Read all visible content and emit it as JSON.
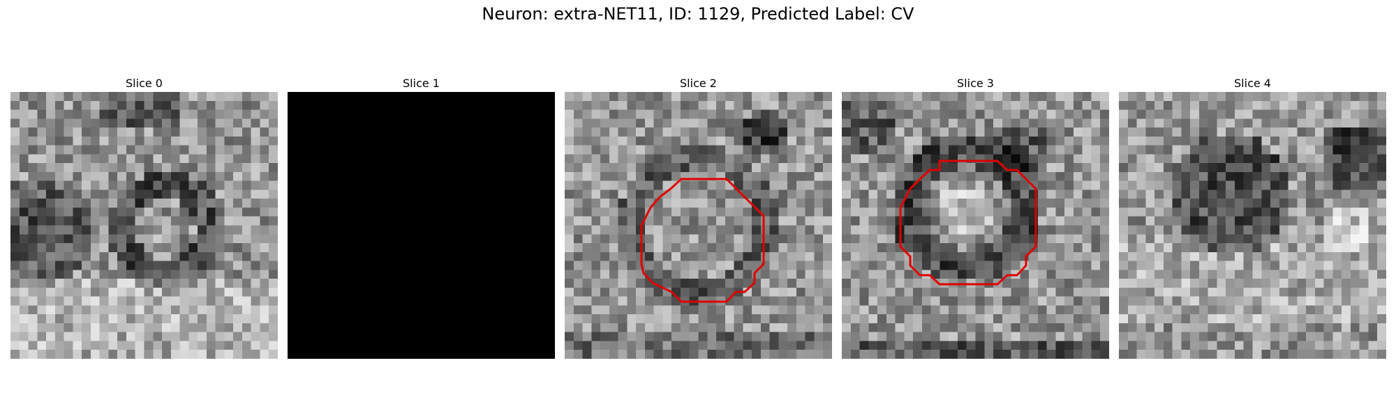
{
  "title": "Neuron: extra-NET11, ID: 1129, Predicted Label: CV",
  "panels": [
    {
      "label": "Slice 0",
      "seed": 11,
      "style": "rings",
      "contour": false
    },
    {
      "label": "Slice 1",
      "seed": 0,
      "style": "blank",
      "contour": false
    },
    {
      "label": "Slice 2",
      "seed": 23,
      "style": "noisy",
      "contour": true
    },
    {
      "label": "Slice 3",
      "seed": 37,
      "style": "ring",
      "contour": true
    },
    {
      "label": "Slice 4",
      "seed": 53,
      "style": "blob",
      "contour": false
    }
  ],
  "colors": {
    "contour": "#e00000",
    "blank": "#000000"
  }
}
